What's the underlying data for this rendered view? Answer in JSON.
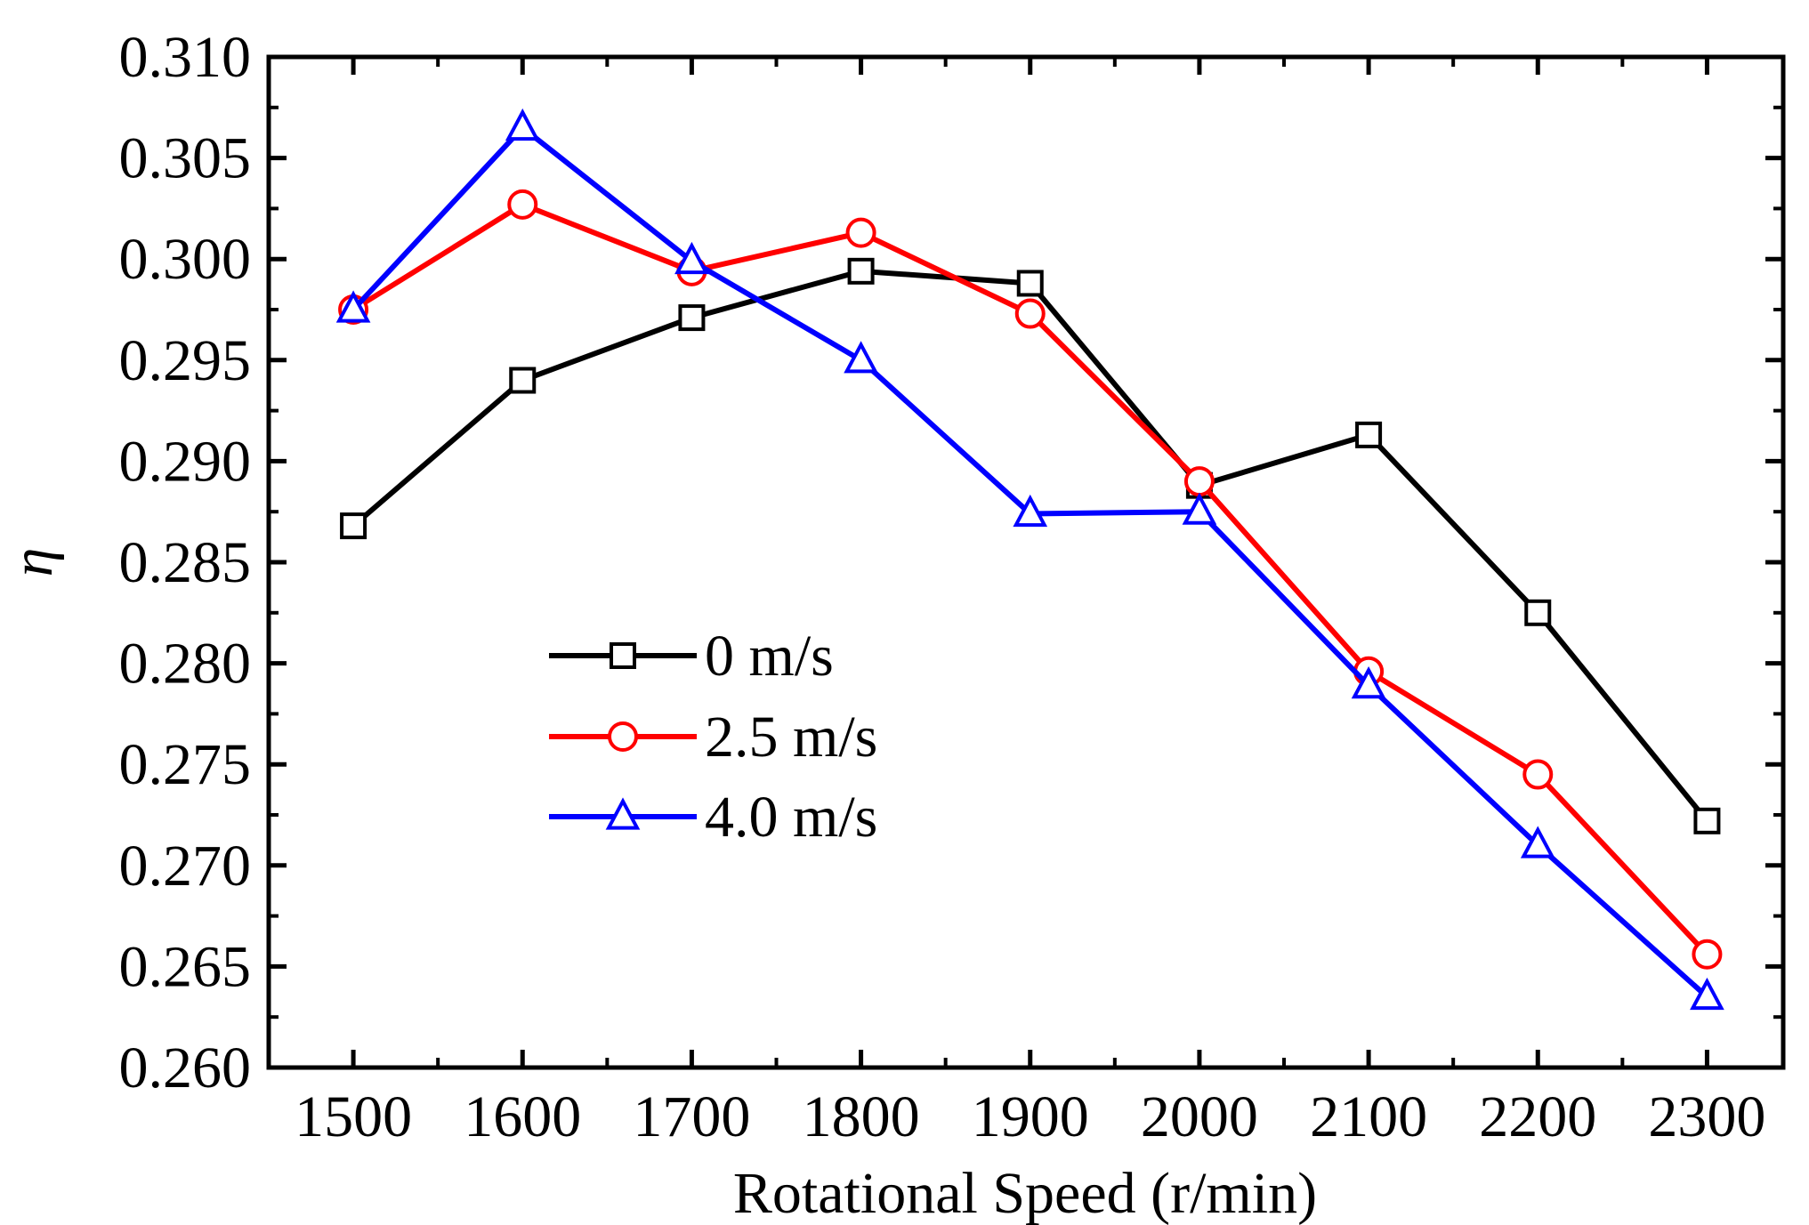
{
  "chart_data": {
    "type": "line",
    "title": "",
    "xlabel": "Rotational Speed (r/min)",
    "ylabel": "η",
    "x": [
      1500,
      1600,
      1700,
      1800,
      1900,
      2000,
      2100,
      2200,
      2300
    ],
    "x_tick_labels": [
      "1500",
      "1600",
      "1700",
      "1800",
      "1900",
      "2000",
      "2100",
      "2200",
      "2300"
    ],
    "y_tick_values": [
      0.26,
      0.265,
      0.27,
      0.275,
      0.28,
      0.285,
      0.29,
      0.295,
      0.3,
      0.305,
      0.31
    ],
    "y_tick_labels": [
      "0.260",
      "0.265",
      "0.270",
      "0.275",
      "0.280",
      "0.285",
      "0.290",
      "0.295",
      "0.300",
      "0.305",
      "0.310"
    ],
    "xlim": [
      1450,
      2345
    ],
    "ylim": [
      0.26,
      0.31
    ],
    "grid": false,
    "legend_position": "center-left",
    "series": [
      {
        "name": "0 m/s",
        "color": "#000000",
        "marker": "square",
        "values": [
          0.2868,
          0.294,
          0.2971,
          0.2994,
          0.2988,
          0.2888,
          0.2913,
          0.2825,
          0.2722
        ]
      },
      {
        "name": "2.5 m/s",
        "color": "#ff0000",
        "marker": "circle",
        "values": [
          0.2975,
          0.3027,
          0.2994,
          0.3013,
          0.2973,
          0.289,
          0.2796,
          0.2745,
          0.2656
        ]
      },
      {
        "name": "4.0 m/s",
        "color": "#0000ff",
        "marker": "triangle",
        "values": [
          0.2975,
          0.3065,
          0.2999,
          0.295,
          0.2874,
          0.2875,
          0.2789,
          0.271,
          0.2635
        ]
      }
    ]
  }
}
